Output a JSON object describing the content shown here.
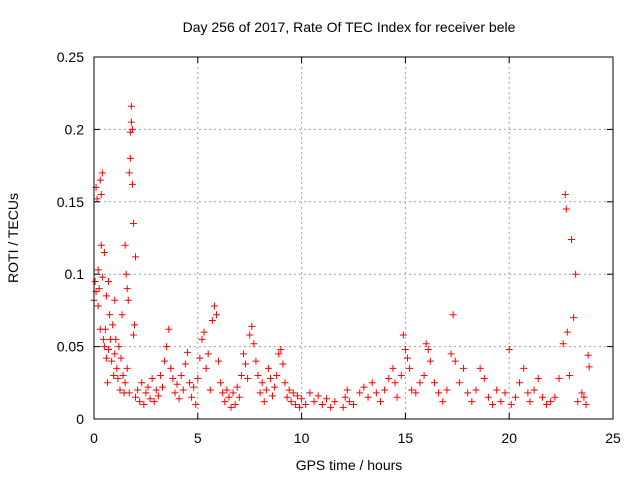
{
  "chart_data": {
    "type": "scatter",
    "title": "Day 256 of 2017, Rate Of TEC Index for receiver bele",
    "xlabel": "GPS time / hours",
    "ylabel": "ROTI / TECUs",
    "xlim": [
      0,
      25
    ],
    "ylim": [
      0,
      0.25
    ],
    "xticks": [
      "0",
      "5",
      "10",
      "15",
      "20",
      "25"
    ],
    "yticks": [
      "0",
      "0.05",
      "0.1",
      "0.15",
      "0.2",
      "0.25"
    ],
    "grid": true,
    "marker": "+",
    "color": "#ff0000",
    "series": [
      {
        "points": [
          [
            0.0,
            0.082
          ],
          [
            0.05,
            0.095
          ],
          [
            0.1,
            0.088
          ],
          [
            0.1,
            0.16
          ],
          [
            0.15,
            0.152
          ],
          [
            0.2,
            0.078
          ],
          [
            0.2,
            0.103
          ],
          [
            0.25,
            0.09
          ],
          [
            0.3,
            0.062
          ],
          [
            0.3,
            0.165
          ],
          [
            0.35,
            0.155
          ],
          [
            0.4,
            0.17
          ],
          [
            0.35,
            0.12
          ],
          [
            0.4,
            0.098
          ],
          [
            0.45,
            0.055
          ],
          [
            0.5,
            0.05
          ],
          [
            0.5,
            0.115
          ],
          [
            0.55,
            0.062
          ],
          [
            0.6,
            0.042
          ],
          [
            0.6,
            0.085
          ],
          [
            0.65,
            0.025
          ],
          [
            0.7,
            0.048
          ],
          [
            0.7,
            0.095
          ],
          [
            0.75,
            0.072
          ],
          [
            0.8,
            0.055
          ],
          [
            0.85,
            0.04
          ],
          [
            0.9,
            0.065
          ],
          [
            0.95,
            0.03
          ],
          [
            1.0,
            0.045
          ],
          [
            1.0,
            0.082
          ],
          [
            1.05,
            0.055
          ],
          [
            1.1,
            0.035
          ],
          [
            1.15,
            0.028
          ],
          [
            1.2,
            0.05
          ],
          [
            1.25,
            0.02
          ],
          [
            1.3,
            0.042
          ],
          [
            1.35,
            0.072
          ],
          [
            1.4,
            0.03
          ],
          [
            1.45,
            0.018
          ],
          [
            1.5,
            0.025
          ],
          [
            1.5,
            0.12
          ],
          [
            1.55,
            0.1
          ],
          [
            1.6,
            0.035
          ],
          [
            1.6,
            0.09
          ],
          [
            1.65,
            0.082
          ],
          [
            1.7,
            0.018
          ],
          [
            1.7,
            0.17
          ],
          [
            1.75,
            0.18
          ],
          [
            1.75,
            0.198
          ],
          [
            1.8,
            0.216
          ],
          [
            1.8,
            0.205
          ],
          [
            1.85,
            0.2
          ],
          [
            1.85,
            0.162
          ],
          [
            1.9,
            0.135
          ],
          [
            1.9,
            0.058
          ],
          [
            1.95,
            0.065
          ],
          [
            2.0,
            0.015
          ],
          [
            2.0,
            0.112
          ],
          [
            2.1,
            0.02
          ],
          [
            2.2,
            0.012
          ],
          [
            2.3,
            0.025
          ],
          [
            2.4,
            0.01
          ],
          [
            2.5,
            0.018
          ],
          [
            2.6,
            0.022
          ],
          [
            2.7,
            0.014
          ],
          [
            2.8,
            0.028
          ],
          [
            2.9,
            0.012
          ],
          [
            3.0,
            0.02
          ],
          [
            3.1,
            0.016
          ],
          [
            3.2,
            0.03
          ],
          [
            3.3,
            0.022
          ],
          [
            3.4,
            0.04
          ],
          [
            3.5,
            0.05
          ],
          [
            3.6,
            0.062
          ],
          [
            3.7,
            0.035
          ],
          [
            3.8,
            0.028
          ],
          [
            3.9,
            0.018
          ],
          [
            4.0,
            0.024
          ],
          [
            4.1,
            0.014
          ],
          [
            4.2,
            0.03
          ],
          [
            4.3,
            0.02
          ],
          [
            4.4,
            0.038
          ],
          [
            4.5,
            0.046
          ],
          [
            4.6,
            0.025
          ],
          [
            4.7,
            0.015
          ],
          [
            4.8,
            0.022
          ],
          [
            4.9,
            0.01
          ],
          [
            5.0,
            0.028
          ],
          [
            5.1,
            0.042
          ],
          [
            5.2,
            0.055
          ],
          [
            5.3,
            0.06
          ],
          [
            5.4,
            0.035
          ],
          [
            5.5,
            0.045
          ],
          [
            5.6,
            0.02
          ],
          [
            5.7,
            0.068
          ],
          [
            5.8,
            0.078
          ],
          [
            5.9,
            0.072
          ],
          [
            6.0,
            0.04
          ],
          [
            6.1,
            0.025
          ],
          [
            6.2,
            0.018
          ],
          [
            6.3,
            0.012
          ],
          [
            6.4,
            0.02
          ],
          [
            6.5,
            0.015
          ],
          [
            6.6,
            0.008
          ],
          [
            6.7,
            0.018
          ],
          [
            6.8,
            0.01
          ],
          [
            6.9,
            0.022
          ],
          [
            7.0,
            0.015
          ],
          [
            7.1,
            0.03
          ],
          [
            7.2,
            0.045
          ],
          [
            7.3,
            0.038
          ],
          [
            7.4,
            0.028
          ],
          [
            7.5,
            0.058
          ],
          [
            7.6,
            0.064
          ],
          [
            7.7,
            0.052
          ],
          [
            7.8,
            0.04
          ],
          [
            7.9,
            0.03
          ],
          [
            8.0,
            0.018
          ],
          [
            8.1,
            0.025
          ],
          [
            8.2,
            0.012
          ],
          [
            8.3,
            0.02
          ],
          [
            8.4,
            0.035
          ],
          [
            8.5,
            0.028
          ],
          [
            8.6,
            0.016
          ],
          [
            8.7,
            0.022
          ],
          [
            8.8,
            0.03
          ],
          [
            8.9,
            0.045
          ],
          [
            9.0,
            0.048
          ],
          [
            9.1,
            0.038
          ],
          [
            9.2,
            0.025
          ],
          [
            9.3,
            0.015
          ],
          [
            9.4,
            0.02
          ],
          [
            9.5,
            0.012
          ],
          [
            9.6,
            0.018
          ],
          [
            9.7,
            0.01
          ],
          [
            9.8,
            0.016
          ],
          [
            9.9,
            0.008
          ],
          [
            10.0,
            0.014
          ],
          [
            10.2,
            0.01
          ],
          [
            10.4,
            0.018
          ],
          [
            10.6,
            0.012
          ],
          [
            10.8,
            0.016
          ],
          [
            11.0,
            0.01
          ],
          [
            11.2,
            0.014
          ],
          [
            11.4,
            0.008
          ],
          [
            11.6,
            0.012
          ],
          [
            12.0,
            0.008
          ],
          [
            12.1,
            0.015
          ],
          [
            12.2,
            0.02
          ],
          [
            12.3,
            0.012
          ],
          [
            12.5,
            0.01
          ],
          [
            12.8,
            0.018
          ],
          [
            13.0,
            0.022
          ],
          [
            13.2,
            0.015
          ],
          [
            13.4,
            0.025
          ],
          [
            13.6,
            0.018
          ],
          [
            13.8,
            0.012
          ],
          [
            14.0,
            0.02
          ],
          [
            14.2,
            0.028
          ],
          [
            14.4,
            0.035
          ],
          [
            14.5,
            0.025
          ],
          [
            14.6,
            0.015
          ],
          [
            14.8,
            0.03
          ],
          [
            14.9,
            0.058
          ],
          [
            15.0,
            0.048
          ],
          [
            15.1,
            0.042
          ],
          [
            15.2,
            0.035
          ],
          [
            15.3,
            0.02
          ],
          [
            15.5,
            0.018
          ],
          [
            15.7,
            0.025
          ],
          [
            15.9,
            0.03
          ],
          [
            16.0,
            0.052
          ],
          [
            16.1,
            0.048
          ],
          [
            16.2,
            0.04
          ],
          [
            16.4,
            0.025
          ],
          [
            16.6,
            0.018
          ],
          [
            16.8,
            0.012
          ],
          [
            17.0,
            0.02
          ],
          [
            17.2,
            0.045
          ],
          [
            17.3,
            0.072
          ],
          [
            17.4,
            0.04
          ],
          [
            17.6,
            0.025
          ],
          [
            17.8,
            0.035
          ],
          [
            18.0,
            0.018
          ],
          [
            18.2,
            0.012
          ],
          [
            18.4,
            0.02
          ],
          [
            18.6,
            0.035
          ],
          [
            18.8,
            0.028
          ],
          [
            19.0,
            0.015
          ],
          [
            19.2,
            0.01
          ],
          [
            19.4,
            0.02
          ],
          [
            19.6,
            0.012
          ],
          [
            19.8,
            0.018
          ],
          [
            20.0,
            0.048
          ],
          [
            20.1,
            0.01
          ],
          [
            20.3,
            0.015
          ],
          [
            20.5,
            0.025
          ],
          [
            20.7,
            0.035
          ],
          [
            20.9,
            0.018
          ],
          [
            21.0,
            0.012
          ],
          [
            21.2,
            0.02
          ],
          [
            21.4,
            0.028
          ],
          [
            21.6,
            0.015
          ],
          [
            21.8,
            0.01
          ],
          [
            22.0,
            0.012
          ],
          [
            22.2,
            0.015
          ],
          [
            22.4,
            0.028
          ],
          [
            22.6,
            0.052
          ],
          [
            22.7,
            0.155
          ],
          [
            22.75,
            0.145
          ],
          [
            22.8,
            0.06
          ],
          [
            22.9,
            0.03
          ],
          [
            23.0,
            0.124
          ],
          [
            23.1,
            0.07
          ],
          [
            23.2,
            0.1
          ],
          [
            23.3,
            0.012
          ],
          [
            23.5,
            0.018
          ],
          [
            23.6,
            0.015
          ],
          [
            23.7,
            0.01
          ],
          [
            23.8,
            0.044
          ],
          [
            23.85,
            0.036
          ]
        ]
      }
    ]
  }
}
